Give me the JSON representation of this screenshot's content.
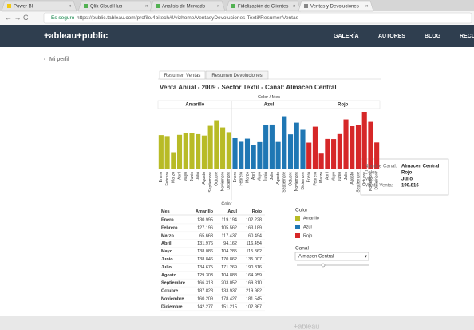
{
  "browser": {
    "tabs": [
      "Power BI",
      "Qlik Cloud Hub",
      "Analisis de Mercado",
      "Fidelización de Clientes",
      "Ventas y Devoluciones"
    ],
    "secure_label": "Es seguro",
    "url": "https://public.tableau.com/profile/4bitech#!/vizhome/VentasyDevoluciones-Textil/ResumenVentas"
  },
  "site": {
    "logo": "+ableau+public",
    "nav": [
      "GALERÍA",
      "AUTORES",
      "BLOG",
      "RECU"
    ],
    "back_link": "Mi perfil",
    "footer": "+ableau"
  },
  "viz": {
    "tabs": [
      "Resumen Ventas",
      "Resumen Devoluciones"
    ],
    "title": "Venta Anual - 2009 - Sector Textil - Canal: Almacen Central",
    "chart_data": {
      "type": "bar",
      "header": "Color  /  Mes",
      "categories": [
        "Enero",
        "Febrero",
        "Marzo",
        "Abril",
        "Mayo",
        "Junio",
        "Julio",
        "Agosto",
        "Septiembre",
        "Octubre",
        "Noviembre",
        "Diciembre"
      ],
      "series": [
        {
          "name": "Amarillo",
          "color": "#b8bb26",
          "values": [
            130995,
            127196,
            65663,
            131976,
            138086,
            138846,
            134675,
            129303,
            166318,
            187828,
            160209,
            142277
          ]
        },
        {
          "name": "Azul",
          "color": "#1f77b4",
          "values": [
            119194,
            105562,
            117437,
            94162,
            104285,
            170862,
            171269,
            104888,
            203052,
            133937,
            178427,
            151215
          ]
        },
        {
          "name": "Rojo",
          "color": "#d62728",
          "values": [
            102228,
            163189,
            60494,
            116454,
            115862,
            135007,
            190816,
            164959,
            169810,
            219982,
            181545,
            102867
          ]
        }
      ]
    },
    "tooltip": [
      {
        "label": "Nombre Canal:",
        "value": "Almacen Central"
      },
      {
        "label": "Color:",
        "value": "Rojo"
      },
      {
        "label": "Mes:",
        "value": "Julio"
      },
      {
        "label": "Monto Venta:",
        "value": "190.816"
      }
    ],
    "table": {
      "header": "Color",
      "first_column": "Mes",
      "rows": [
        [
          "130.995",
          "119.194",
          "102.228"
        ],
        [
          "127.196",
          "105.562",
          "163.189"
        ],
        [
          "65.663",
          "117.437",
          "60.494"
        ],
        [
          "131.976",
          "94.162",
          "116.454"
        ],
        [
          "138.086",
          "104.285",
          "115.862"
        ],
        [
          "138.846",
          "170.862",
          "135.007"
        ],
        [
          "134.675",
          "171.269",
          "190.816"
        ],
        [
          "129.303",
          "104.888",
          "164.959"
        ],
        [
          "166.318",
          "203.052",
          "169.810"
        ],
        [
          "187.828",
          "133.937",
          "219.982"
        ],
        [
          "160.209",
          "178.427",
          "181.545"
        ],
        [
          "142.277",
          "151.215",
          "102.867"
        ]
      ]
    },
    "legend_title": "Color",
    "filter": {
      "label": "Canal",
      "selected": "Almacen Central"
    }
  }
}
